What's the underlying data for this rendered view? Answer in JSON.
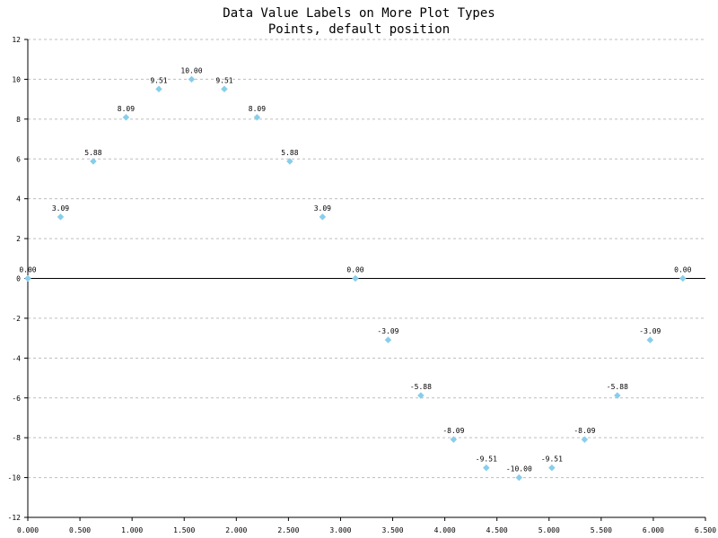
{
  "chart_data": {
    "type": "scatter",
    "title": "Data Value Labels on More Plot Types",
    "subtitle": "Points, default position",
    "xlabel": "",
    "ylabel": "",
    "xlim": [
      0,
      6.5
    ],
    "ylim": [
      -12,
      12
    ],
    "x_ticks": [
      "0.000",
      "0.500",
      "1.000",
      "1.500",
      "2.000",
      "2.500",
      "3.000",
      "3.500",
      "4.000",
      "4.500",
      "5.000",
      "5.500",
      "6.000",
      "6.500"
    ],
    "y_ticks": [
      "-12",
      "-10",
      "-8",
      "-6",
      "-4",
      "-2",
      "0",
      "2",
      "4",
      "6",
      "8",
      "10",
      "12"
    ],
    "grid": "horizontal-dashed",
    "marker": "diamond",
    "marker_color": "#87CEEB",
    "x": [
      0.0,
      0.314,
      0.628,
      0.942,
      1.257,
      1.571,
      1.885,
      2.199,
      2.513,
      2.827,
      3.142,
      3.456,
      3.77,
      4.084,
      4.398,
      4.712,
      5.027,
      5.341,
      5.655,
      5.969,
      6.283
    ],
    "values": [
      0.0,
      3.09,
      5.88,
      8.09,
      9.51,
      10.0,
      9.51,
      8.09,
      5.88,
      3.09,
      0.0,
      -3.09,
      -5.88,
      -8.09,
      -9.51,
      -10.0,
      -9.51,
      -8.09,
      -5.88,
      -3.09,
      0.0
    ],
    "data_labels": [
      "0.00",
      "3.09",
      "5.88",
      "8.09",
      "9.51",
      "10.00",
      "9.51",
      "8.09",
      "5.88",
      "3.09",
      "0.00",
      "-3.09",
      "-5.88",
      "-8.09",
      "-9.51",
      "-10.00",
      "-9.51",
      "-8.09",
      "-5.88",
      "-3.09",
      "0.00"
    ]
  }
}
